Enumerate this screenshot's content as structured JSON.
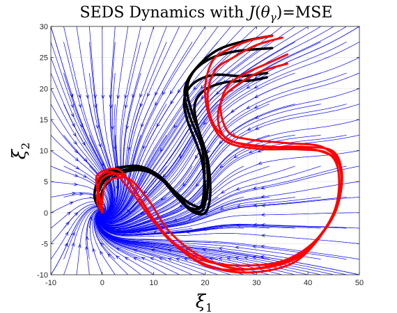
{
  "chart_data": {
    "type": "streamline",
    "title_parts": {
      "pre": "SEDS Dynamics with ",
      "j": "J",
      "open": "(",
      "theta": "θ",
      "gamma": "γ",
      "close": ")",
      "post": "=MSE"
    },
    "xlabel": {
      "symbol": "ξ",
      "sub": "1"
    },
    "ylabel": {
      "symbol": "ξ",
      "sub": "2"
    },
    "xlim": [
      -10,
      50
    ],
    "ylim": [
      -10,
      30
    ],
    "xticks": [
      "-10",
      "0",
      "10",
      "20",
      "30",
      "40",
      "50"
    ],
    "yticks": [
      "-10",
      "-5",
      "0",
      "5",
      "10",
      "15",
      "20",
      "25",
      "30"
    ],
    "attractor": [
      0,
      0
    ],
    "colors": {
      "streamlines": "#0000ff",
      "demonstrations": "#000000",
      "reproductions": "#ff0000"
    },
    "demonstrations": [
      [
        [
          0,
          0
        ],
        [
          -1,
          2
        ],
        [
          0,
          5
        ],
        [
          3,
          7
        ],
        [
          7,
          7.5
        ],
        [
          11,
          6
        ],
        [
          14,
          3.5
        ],
        [
          17,
          1.5
        ],
        [
          19.5,
          1
        ],
        [
          20.5,
          4
        ],
        [
          20,
          10
        ],
        [
          17.5,
          16
        ],
        [
          16.5,
          20
        ],
        [
          18,
          23
        ],
        [
          22,
          26
        ],
        [
          27,
          27.5
        ],
        [
          33,
          28.5
        ]
      ],
      [
        [
          0,
          0
        ],
        [
          -1.5,
          2.5
        ],
        [
          -0.5,
          5.5
        ],
        [
          3,
          7.2
        ],
        [
          7,
          7.3
        ],
        [
          11,
          5.8
        ],
        [
          14,
          3
        ],
        [
          16.5,
          1
        ],
        [
          19,
          0.8
        ],
        [
          19.8,
          4
        ],
        [
          19.5,
          10
        ],
        [
          17,
          15.5
        ],
        [
          16,
          19.5
        ],
        [
          17.5,
          22.5
        ],
        [
          21,
          24.8
        ],
        [
          26,
          26
        ],
        [
          33,
          26.5
        ]
      ],
      [
        [
          0,
          0
        ],
        [
          -1,
          2.2
        ],
        [
          0.5,
          5.2
        ],
        [
          4,
          6.8
        ],
        [
          8,
          7
        ],
        [
          12,
          5.2
        ],
        [
          14.5,
          2.8
        ],
        [
          17,
          0.5
        ],
        [
          19.5,
          0.4
        ],
        [
          20,
          3.5
        ],
        [
          19.2,
          9
        ],
        [
          16.5,
          15
        ],
        [
          16,
          18.5
        ],
        [
          18,
          21
        ],
        [
          22,
          22.2
        ],
        [
          27,
          22
        ],
        [
          32,
          22.5
        ]
      ],
      [
        [
          0,
          0
        ],
        [
          -0.5,
          2
        ],
        [
          1,
          4.8
        ],
        [
          4.5,
          6.6
        ],
        [
          8.5,
          6.7
        ],
        [
          12,
          5
        ],
        [
          15,
          2.5
        ],
        [
          17.5,
          0.2
        ],
        [
          20,
          0
        ],
        [
          21,
          3
        ],
        [
          20.5,
          8.5
        ],
        [
          18.5,
          14
        ],
        [
          18,
          17.5
        ],
        [
          20,
          19.8
        ],
        [
          24,
          21
        ],
        [
          29,
          21.3
        ],
        [
          32,
          21.8
        ]
      ]
    ],
    "reproductions": [
      [
        [
          33,
          28.5
        ],
        [
          29,
          27.8
        ],
        [
          25,
          26.5
        ],
        [
          21.5,
          24.5
        ],
        [
          20,
          20
        ],
        [
          21,
          15
        ],
        [
          24,
          11.5
        ],
        [
          30,
          10.3
        ],
        [
          38,
          10.2
        ],
        [
          44,
          9.5
        ],
        [
          46,
          6
        ],
        [
          45,
          0
        ],
        [
          40,
          -6
        ],
        [
          34,
          -8.5
        ],
        [
          26,
          -9
        ],
        [
          19,
          -7
        ],
        [
          13,
          -3
        ],
        [
          9,
          2
        ],
        [
          5,
          5.5
        ],
        [
          1,
          5
        ],
        [
          0,
          2
        ],
        [
          0,
          0
        ]
      ],
      [
        [
          35,
          28.2
        ],
        [
          30,
          27
        ],
        [
          25.5,
          25
        ],
        [
          22,
          23
        ],
        [
          20.5,
          19
        ],
        [
          21.5,
          14.5
        ],
        [
          25,
          11.6
        ],
        [
          31,
          10.6
        ],
        [
          39,
          10.6
        ],
        [
          45,
          9.8
        ],
        [
          46.5,
          5.5
        ],
        [
          44.5,
          -1
        ],
        [
          39,
          -7
        ],
        [
          33,
          -9.2
        ],
        [
          25,
          -9.5
        ],
        [
          18,
          -7.5
        ],
        [
          12,
          -3.5
        ],
        [
          8,
          1.5
        ],
        [
          4,
          6
        ],
        [
          0,
          5.5
        ],
        [
          -1,
          2
        ],
        [
          0,
          0
        ]
      ],
      [
        [
          36,
          24
        ],
        [
          31,
          22.8
        ],
        [
          27,
          21
        ],
        [
          23.5,
          18.5
        ],
        [
          22.5,
          15
        ],
        [
          24,
          12
        ],
        [
          28,
          11
        ],
        [
          35,
          10.5
        ],
        [
          42,
          10
        ],
        [
          46,
          7.8
        ],
        [
          46,
          2
        ],
        [
          42,
          -4
        ],
        [
          36,
          -7.5
        ],
        [
          29,
          -8.5
        ],
        [
          21,
          -8
        ],
        [
          15,
          -5.5
        ],
        [
          10,
          -1.5
        ],
        [
          6,
          3
        ],
        [
          2,
          6.5
        ],
        [
          -1,
          5
        ],
        [
          0,
          0
        ]
      ],
      [
        [
          36,
          25.5
        ],
        [
          32,
          24
        ],
        [
          28,
          22.5
        ],
        [
          24.5,
          20.5
        ],
        [
          23,
          17
        ],
        [
          24.5,
          13
        ],
        [
          28.5,
          11.8
        ],
        [
          36,
          11.2
        ],
        [
          43,
          10.5
        ],
        [
          46.5,
          7
        ],
        [
          45.5,
          0.5
        ],
        [
          41,
          -5
        ],
        [
          35,
          -8
        ],
        [
          27,
          -9.2
        ],
        [
          20,
          -8.5
        ],
        [
          14,
          -5
        ],
        [
          9.5,
          -0.5
        ],
        [
          6,
          4
        ],
        [
          3,
          7
        ],
        [
          -1,
          6
        ],
        [
          -0.5,
          2.5
        ],
        [
          0,
          0
        ]
      ]
    ]
  }
}
